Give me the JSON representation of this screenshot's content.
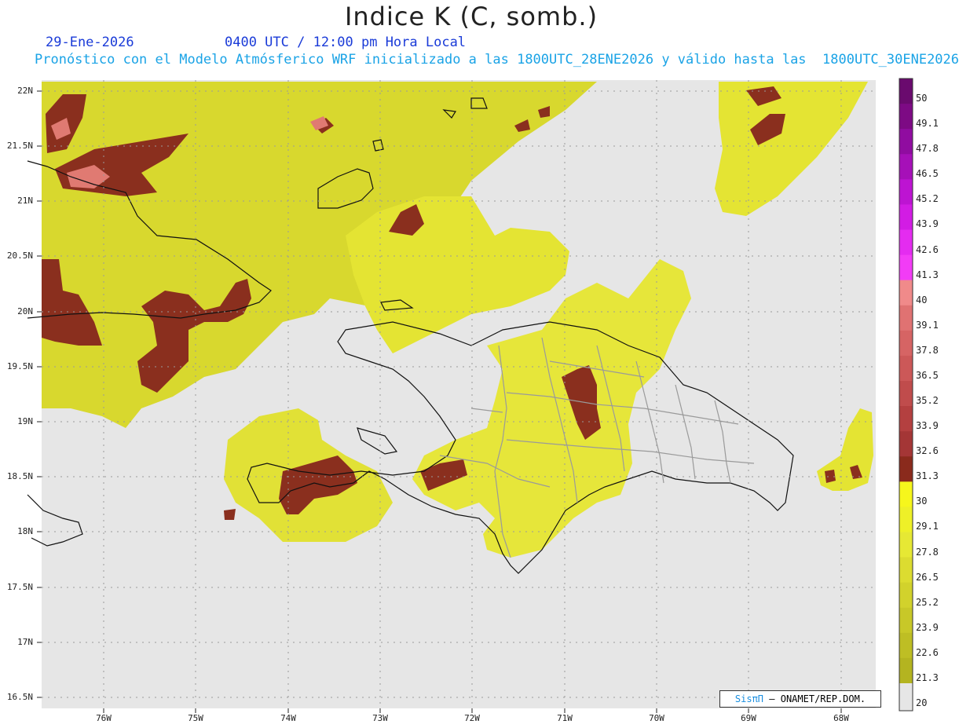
{
  "header": {
    "title": "Indice K (C, somb.)",
    "date": "29-Ene-2026",
    "time": "0400 UTC / 12:00 pm Hora Local",
    "subtitle": "Pronóstico con el Modelo Atmósferico WRF inicializado a las 1800UTC_28ENE2026 y válido hasta las  1800UTC_30ENE2026"
  },
  "axes": {
    "lat_labels": [
      "22N",
      "21.5N",
      "21N",
      "20.5N",
      "20N",
      "19.5N",
      "19N",
      "18.5N",
      "18N",
      "17.5N",
      "17N",
      "16.5N"
    ],
    "lon_labels": [
      "76W",
      "75W",
      "74W",
      "73W",
      "72W",
      "71W",
      "70W",
      "69W",
      "68W"
    ]
  },
  "colorbar": {
    "labels": [
      "50",
      "49.1",
      "47.8",
      "46.5",
      "45.2",
      "43.9",
      "42.6",
      "41.3",
      "40",
      "39.1",
      "37.8",
      "36.5",
      "35.2",
      "33.9",
      "32.6",
      "31.3",
      "30",
      "29.1",
      "27.8",
      "26.5",
      "25.2",
      "23.9",
      "22.6",
      "21.3",
      "20"
    ],
    "colors": [
      "#6a0a6e",
      "#7d0a84",
      "#900ca0",
      "#a610b8",
      "#bd14d2",
      "#d21ce4",
      "#e42cf0",
      "#f23cf6",
      "#f08a8a",
      "#e07272",
      "#d66464",
      "#cc5858",
      "#c04c4c",
      "#b44040",
      "#a43636",
      "#8a2a1c",
      "#f6f61c",
      "#eef028",
      "#e6e834",
      "#dcdc30",
      "#d2d22c",
      "#c8c828",
      "#bebe24",
      "#b4b420"
    ]
  },
  "map_colors": {
    "background": "#e6e6e6",
    "yellow_light": "#e4e433",
    "yellow_mid": "#cfcf2a",
    "yellow_bright": "#f2f22a",
    "brown": "#8a2f1e",
    "pink": "#e07a72"
  },
  "credit": {
    "logo": "SisπΠ",
    "text": "– ONAMET/REP.DOM."
  }
}
